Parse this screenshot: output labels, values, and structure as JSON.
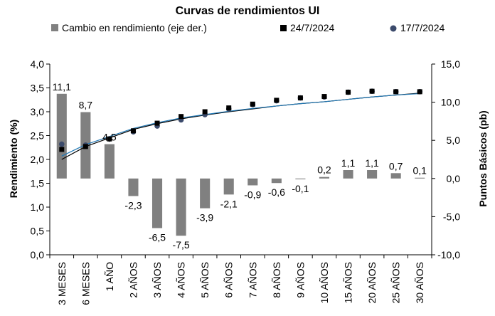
{
  "chart_data": {
    "type": "bar",
    "title": "Curvas de rendimientos UI",
    "categories": [
      "3 MESES",
      "6 MESES",
      "1 AÑO",
      "2 AÑOS",
      "3 AÑOS",
      "4 AÑOS",
      "5 AÑOS",
      "6 AÑOS",
      "7 AÑOS",
      "8 AÑOS",
      "9 AÑOS",
      "10 AÑOS",
      "15 AÑOS",
      "20 AÑOS",
      "25 AÑOS",
      "30 AÑOS"
    ],
    "ylabel_left": "Rendimiento (%)",
    "ylabel_right": "Puntos Básicos (pb)",
    "ylim_left": [
      0,
      4
    ],
    "ylim_right": [
      -10,
      15
    ],
    "yticks_left": [
      "0,0",
      "0,5",
      "1,0",
      "1,5",
      "2,0",
      "2,5",
      "3,0",
      "3,5",
      "4,0"
    ],
    "yticks_right": [
      "-10,0",
      "-5,0",
      "0,0",
      "5,0",
      "10,0",
      "15,0"
    ],
    "legend_position": "top",
    "series": [
      {
        "name": "Cambio en rendimiento (eje der.)",
        "kind": "bar",
        "axis": "right",
        "color": "#808080",
        "values": [
          11.1,
          8.7,
          4.5,
          -2.3,
          -6.5,
          -7.5,
          -3.9,
          -2.1,
          -0.9,
          -0.6,
          -0.1,
          0.2,
          1.1,
          1.1,
          0.7,
          0.1
        ],
        "labels": [
          "11,1",
          "8,7",
          "4,5",
          "-2,3",
          "-6,5",
          "-7,5",
          "-3,9",
          "-2,1",
          "-0,9",
          "-0,6",
          "-0,1",
          "0,2",
          "1,1",
          "1,1",
          "0,7",
          "0,1"
        ]
      },
      {
        "name": "24/7/2024",
        "kind": "scatter",
        "axis": "left",
        "marker": "square",
        "color": "#000000",
        "values": [
          2.21,
          2.27,
          2.43,
          2.6,
          2.76,
          2.9,
          3.0,
          3.08,
          3.16,
          3.24,
          3.29,
          3.32,
          3.41,
          3.43,
          3.42,
          3.42
        ]
      },
      {
        "name": "17/7/2024",
        "kind": "scatter",
        "axis": "left",
        "marker": "circle",
        "color": "#3b4a6b",
        "values": [
          2.32,
          2.3,
          2.43,
          2.58,
          2.7,
          2.83,
          2.94,
          3.06,
          3.15,
          3.23,
          3.29,
          3.31,
          3.41,
          3.43,
          3.42,
          3.42
        ]
      }
    ],
    "trendlines": [
      {
        "color": "#000000",
        "values": [
          2.0,
          2.27,
          2.45,
          2.63,
          2.75,
          2.85,
          2.93,
          3.0,
          3.06,
          3.12,
          3.17,
          3.21,
          3.26,
          3.31,
          3.35,
          3.39
        ]
      },
      {
        "color": "#1f77b4",
        "values": [
          2.07,
          2.31,
          2.48,
          2.65,
          2.77,
          2.87,
          2.94,
          3.01,
          3.07,
          3.12,
          3.17,
          3.21,
          3.26,
          3.31,
          3.35,
          3.38
        ]
      }
    ]
  }
}
